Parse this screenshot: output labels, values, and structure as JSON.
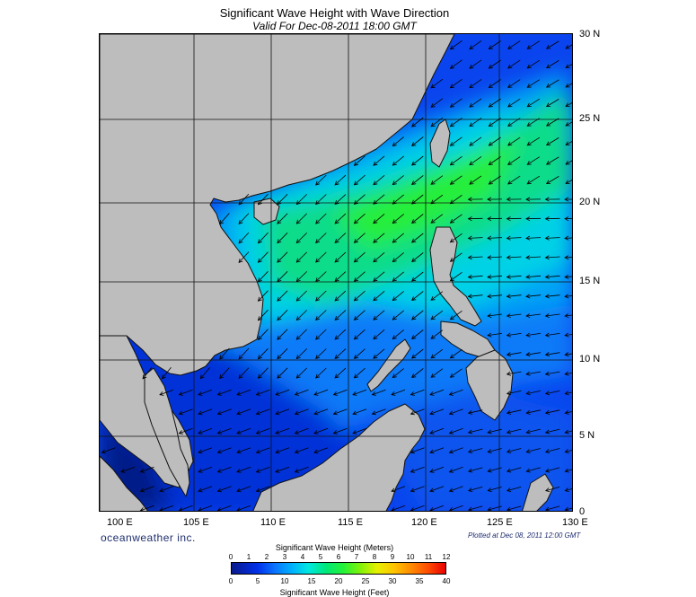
{
  "header": {
    "title": "Significant Wave Height with Wave Direction",
    "subtitle": "Valid For Dec-08-2011 18:00 GMT"
  },
  "map": {
    "lat_labels": [
      "30 N",
      "25 N",
      "20 N",
      "15 N",
      "10 N",
      "5 N",
      "0"
    ],
    "lon_labels": [
      "100 E",
      "105 E",
      "110 E",
      "115 E",
      "120 E",
      "125 E",
      "130 E"
    ],
    "lat_range": [
      0,
      30
    ],
    "lon_range": [
      100,
      130
    ],
    "grid_step_deg": 5,
    "land_color": "#bdbdbd",
    "prevailing_wave_direction": "from northeast toward southwest"
  },
  "footer": {
    "brand": "oceanweather inc.",
    "plotted": "Plotted at Dec 08, 2011 12:00 GMT"
  },
  "legend": {
    "meters_title": "Significant Wave Height (Meters)",
    "feet_title": "Significant Wave Height (Feet)",
    "meters_ticks": [
      "0",
      "1",
      "2",
      "3",
      "4",
      "5",
      "6",
      "7",
      "8",
      "9",
      "10",
      "11",
      "12"
    ],
    "feet_ticks": [
      "0",
      "5",
      "10",
      "15",
      "20",
      "25",
      "30",
      "35",
      "40"
    ],
    "meters_range": [
      0,
      12
    ],
    "feet_range": [
      0,
      40
    ]
  },
  "colors": {
    "low": "#0a1a8c",
    "mid": "#00b0ff",
    "peak": "#23f23a",
    "high": "#e80000"
  }
}
